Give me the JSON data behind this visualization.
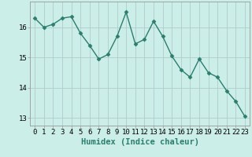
{
  "x": [
    0,
    1,
    2,
    3,
    4,
    5,
    6,
    7,
    8,
    9,
    10,
    11,
    12,
    13,
    14,
    15,
    16,
    17,
    18,
    19,
    20,
    21,
    22,
    23
  ],
  "y": [
    16.3,
    16.0,
    16.1,
    16.3,
    16.35,
    15.8,
    15.4,
    14.95,
    15.1,
    15.7,
    16.5,
    15.45,
    15.6,
    16.2,
    15.7,
    15.05,
    14.6,
    14.35,
    14.95,
    14.5,
    14.35,
    13.9,
    13.55,
    13.05
  ],
  "line_color": "#2d7d6e",
  "marker": "D",
  "markersize": 2.5,
  "linewidth": 1.0,
  "bg_color": "#cceee8",
  "grid_color": "#b0cccc",
  "xlabel": "Humidex (Indice chaleur)",
  "xlim": [
    -0.5,
    23.5
  ],
  "ylim": [
    12.75,
    16.85
  ],
  "yticks": [
    13,
    14,
    15,
    16
  ],
  "xlabel_fontsize": 7.5,
  "tick_fontsize": 6.5
}
